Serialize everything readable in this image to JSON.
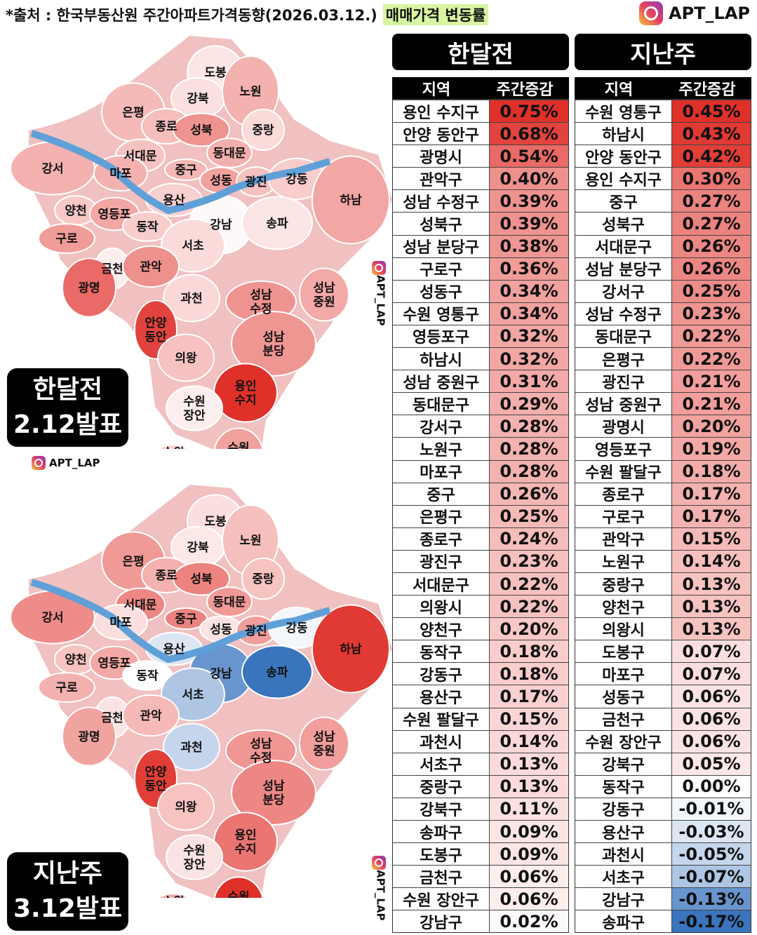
{
  "header": {
    "source": "*출처 : 한국부동산원 주간아파트가격동향(2026.03.12.)",
    "highlight": "매매가격 변동률",
    "brand": "APT_LAP"
  },
  "colors": {
    "positive": "#e0302a",
    "negative": "#3a74bd",
    "highlight": "#d8f5a0"
  },
  "chart_data": [
    {
      "type": "table",
      "title": "한달전",
      "columns": [
        "지역",
        "주간증감"
      ],
      "rows": [
        [
          "용인 수지구",
          "0.75%"
        ],
        [
          "안양 동안구",
          "0.68%"
        ],
        [
          "광명시",
          "0.54%"
        ],
        [
          "관악구",
          "0.40%"
        ],
        [
          "성남 수정구",
          "0.39%"
        ],
        [
          "성북구",
          "0.39%"
        ],
        [
          "성남 분당구",
          "0.38%"
        ],
        [
          "구로구",
          "0.36%"
        ],
        [
          "성동구",
          "0.34%"
        ],
        [
          "수원 영통구",
          "0.34%"
        ],
        [
          "영등포구",
          "0.32%"
        ],
        [
          "하남시",
          "0.32%"
        ],
        [
          "성남 중원구",
          "0.31%"
        ],
        [
          "동대문구",
          "0.29%"
        ],
        [
          "강서구",
          "0.28%"
        ],
        [
          "노원구",
          "0.28%"
        ],
        [
          "마포구",
          "0.28%"
        ],
        [
          "중구",
          "0.26%"
        ],
        [
          "은평구",
          "0.25%"
        ],
        [
          "종로구",
          "0.24%"
        ],
        [
          "광진구",
          "0.23%"
        ],
        [
          "서대문구",
          "0.22%"
        ],
        [
          "의왕시",
          "0.22%"
        ],
        [
          "양천구",
          "0.20%"
        ],
        [
          "동작구",
          "0.18%"
        ],
        [
          "강동구",
          "0.18%"
        ],
        [
          "용산구",
          "0.17%"
        ],
        [
          "수원 팔달구",
          "0.15%"
        ],
        [
          "과천시",
          "0.14%"
        ],
        [
          "서초구",
          "0.13%"
        ],
        [
          "중랑구",
          "0.13%"
        ],
        [
          "강북구",
          "0.11%"
        ],
        [
          "송파구",
          "0.09%"
        ],
        [
          "도봉구",
          "0.09%"
        ],
        [
          "금천구",
          "0.06%"
        ],
        [
          "수원 장안구",
          "0.06%"
        ],
        [
          "강남구",
          "0.02%"
        ]
      ]
    },
    {
      "type": "table",
      "title": "지난주",
      "columns": [
        "지역",
        "주간증감"
      ],
      "rows": [
        [
          "수원 영통구",
          "0.45%"
        ],
        [
          "하남시",
          "0.43%"
        ],
        [
          "안양 동안구",
          "0.42%"
        ],
        [
          "용인 수지구",
          "0.30%"
        ],
        [
          "중구",
          "0.27%"
        ],
        [
          "성북구",
          "0.27%"
        ],
        [
          "서대문구",
          "0.26%"
        ],
        [
          "성남 분당구",
          "0.26%"
        ],
        [
          "강서구",
          "0.25%"
        ],
        [
          "성남 수정구",
          "0.23%"
        ],
        [
          "동대문구",
          "0.22%"
        ],
        [
          "은평구",
          "0.22%"
        ],
        [
          "광진구",
          "0.21%"
        ],
        [
          "성남 중원구",
          "0.21%"
        ],
        [
          "광명시",
          "0.20%"
        ],
        [
          "영등포구",
          "0.19%"
        ],
        [
          "수원 팔달구",
          "0.18%"
        ],
        [
          "종로구",
          "0.17%"
        ],
        [
          "구로구",
          "0.17%"
        ],
        [
          "관악구",
          "0.15%"
        ],
        [
          "노원구",
          "0.14%"
        ],
        [
          "중랑구",
          "0.13%"
        ],
        [
          "양천구",
          "0.13%"
        ],
        [
          "의왕시",
          "0.13%"
        ],
        [
          "도봉구",
          "0.07%"
        ],
        [
          "마포구",
          "0.07%"
        ],
        [
          "성동구",
          "0.06%"
        ],
        [
          "금천구",
          "0.06%"
        ],
        [
          "수원 장안구",
          "0.06%"
        ],
        [
          "강북구",
          "0.05%"
        ],
        [
          "동작구",
          "0.00%"
        ],
        [
          "강동구",
          "-0.01%"
        ],
        [
          "용산구",
          "-0.03%"
        ],
        [
          "과천시",
          "-0.05%"
        ],
        [
          "서초구",
          "-0.07%"
        ],
        [
          "강남구",
          "-0.13%"
        ],
        [
          "송파구",
          "-0.17%"
        ]
      ]
    }
  ],
  "maps": [
    {
      "badge_line1": "한달전",
      "badge_line2": "2.12발표"
    },
    {
      "badge_line1": "지난주",
      "badge_line2": "3.12발표"
    }
  ],
  "map_labels": {
    "도봉": "도봉구",
    "강북": "강북구",
    "노원": "노원구",
    "은평": "은평구",
    "종로": "종로구",
    "성북": "성북구",
    "중랑": "중랑구",
    "서대문": "서대문구",
    "동대문": "동대문구",
    "강서": "강서구",
    "마포": "마포구",
    "중구": "중구",
    "성동": "성동구",
    "광진": "광진구",
    "강동": "강동구",
    "용산": "용산구",
    "하남": "하남시",
    "양천": "양천구",
    "영등포": "영등포구",
    "강남": "강남구",
    "송파": "송파구",
    "동작": "동작구",
    "구로": "구로구",
    "서초": "서초구",
    "금천": "금천구",
    "관악": "관악구",
    "광명": "광명시",
    "과천": "과천시",
    "성남 수정": "성남 수정구",
    "성남 중원": "성남 중원구",
    "안양 동안": "안양 동안구",
    "성남 분당": "성남 분당구",
    "의왕": "의왕시",
    "용인 수지": "용인 수지구",
    "수원 장안": "수원 장안구",
    "수원 팔달": "수원 팔달구",
    "수원 영통": "수원 영통구"
  }
}
